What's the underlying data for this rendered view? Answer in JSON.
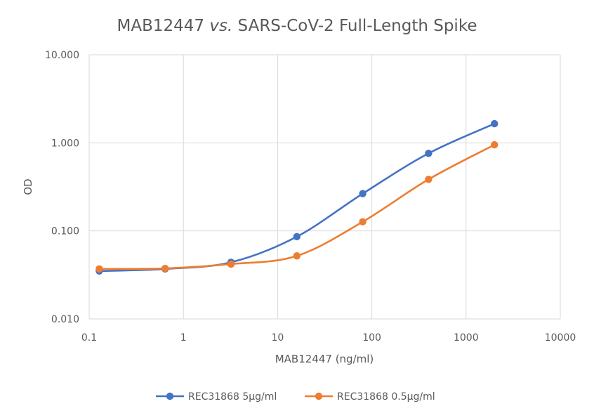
{
  "chart_data": {
    "type": "line",
    "title_main": "MAB12447 ",
    "title_italic": "vs.",
    "title_rest": " SARS-CoV-2 Full-Length Spike",
    "xlabel": "MAB12447 (ng/ml)",
    "ylabel": "OD",
    "x_scale": "log",
    "y_scale": "log",
    "xlim": [
      0.1,
      10000
    ],
    "ylim": [
      0.01,
      10
    ],
    "x_ticks": [
      0.1,
      1,
      10,
      100,
      1000,
      10000
    ],
    "x_tick_labels": [
      "0.1",
      "1",
      "10",
      "100",
      "1000",
      "10000"
    ],
    "y_ticks": [
      0.01,
      0.1,
      1,
      10
    ],
    "y_tick_labels": [
      "0.010",
      "0.100",
      "1.000",
      "10.000"
    ],
    "grid": true,
    "legend_position": "bottom",
    "series": [
      {
        "name": "REC31868 5µg/ml",
        "color": "#4472C4",
        "x": [
          0.128,
          0.64,
          3.2,
          16,
          80,
          400,
          2000
        ],
        "y": [
          0.035,
          0.037,
          0.044,
          0.086,
          0.265,
          0.76,
          1.65
        ]
      },
      {
        "name": "REC31868 0.5µg/ml",
        "color": "#ED7D31",
        "x": [
          0.128,
          0.64,
          3.2,
          16,
          80,
          400,
          2000
        ],
        "y": [
          0.037,
          0.0375,
          0.042,
          0.052,
          0.127,
          0.385,
          0.95
        ]
      }
    ]
  }
}
